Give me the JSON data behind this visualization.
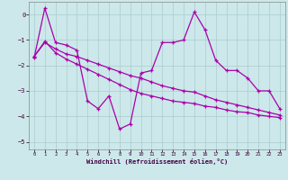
{
  "title": "",
  "xlabel": "Windchill (Refroidissement éolien,°C)",
  "ylabel": "",
  "bg_color": "#cce8ea",
  "grid_color": "#aacccc",
  "line_color": "#aa00aa",
  "xlim": [
    -0.5,
    23.5
  ],
  "ylim": [
    -5.3,
    0.5
  ],
  "xticks": [
    0,
    1,
    2,
    3,
    4,
    5,
    6,
    7,
    8,
    9,
    10,
    11,
    12,
    13,
    14,
    15,
    16,
    17,
    18,
    19,
    20,
    21,
    22,
    23
  ],
  "yticks": [
    0,
    -1,
    -2,
    -3,
    -4,
    -5
  ],
  "curve1_x": [
    0,
    1,
    2,
    3,
    4,
    5,
    6,
    7,
    8,
    9,
    10,
    11,
    12,
    13,
    14,
    15,
    16,
    17,
    18,
    19,
    20,
    21,
    22,
    23
  ],
  "curve1_y": [
    -1.7,
    0.25,
    -1.1,
    -1.2,
    -1.4,
    -3.4,
    -3.7,
    -3.2,
    -4.5,
    -4.3,
    -2.3,
    -2.2,
    -1.1,
    -1.1,
    -1.0,
    0.1,
    -0.6,
    -1.8,
    -2.2,
    -2.2,
    -2.5,
    -3.0,
    -3.0,
    -3.7
  ],
  "curve2_x": [
    0,
    1,
    2,
    3,
    4,
    5,
    6,
    7,
    8,
    9,
    10,
    11,
    12,
    13,
    14,
    15,
    16,
    17,
    18,
    19,
    20,
    21,
    22,
    23
  ],
  "curve2_y": [
    -1.65,
    -1.1,
    -1.35,
    -1.55,
    -1.65,
    -1.8,
    -1.95,
    -2.1,
    -2.25,
    -2.4,
    -2.5,
    -2.65,
    -2.8,
    -2.9,
    -3.0,
    -3.05,
    -3.2,
    -3.35,
    -3.45,
    -3.55,
    -3.65,
    -3.75,
    -3.85,
    -3.95
  ],
  "curve3_x": [
    0,
    1,
    2,
    3,
    4,
    5,
    6,
    7,
    8,
    9,
    10,
    11,
    12,
    13,
    14,
    15,
    16,
    17,
    18,
    19,
    20,
    21,
    22,
    23
  ],
  "curve3_y": [
    -1.65,
    -1.05,
    -1.5,
    -1.75,
    -1.95,
    -2.15,
    -2.35,
    -2.55,
    -2.75,
    -2.95,
    -3.1,
    -3.2,
    -3.3,
    -3.4,
    -3.45,
    -3.5,
    -3.6,
    -3.65,
    -3.75,
    -3.82,
    -3.85,
    -3.95,
    -4.0,
    -4.05
  ]
}
